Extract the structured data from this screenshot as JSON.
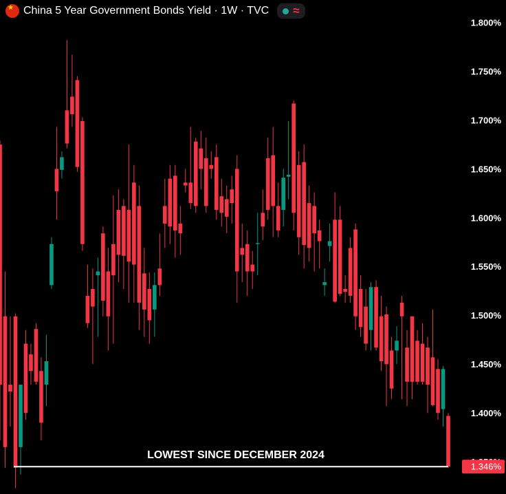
{
  "chart_data": {
    "type": "candlestick",
    "title": "China 5 Year Government Bonds Yield · 1W · TVC",
    "up_color": "#089981",
    "down_color": "#f23645",
    "open": [
      1.676,
      1.5,
      1.43,
      1.5,
      1.366,
      1.472,
      1.461,
      1.487,
      1.444,
      1.43,
      1.532,
      1.651,
      1.65,
      1.711,
      1.725,
      1.742,
      1.7,
      1.521,
      1.528,
      1.542,
      1.585,
      1.546,
      1.574,
      1.609,
      1.613,
      1.609,
      1.637,
      1.613,
      1.544,
      1.528,
      1.507,
      1.549,
      1.613,
      1.641,
      1.644,
      1.595,
      1.637,
      1.637,
      1.679,
      1.672,
      1.662,
      1.655,
      1.663,
      1.623,
      1.62,
      1.63,
      1.651,
      1.57,
      1.574,
      1.553,
      1.574,
      1.606,
      1.662,
      1.665,
      1.613,
      1.609,
      1.643,
      1.718,
      1.655,
      1.658,
      1.616,
      1.613,
      1.588,
      1.532,
      1.572,
      1.599,
      1.599,
      1.528,
      1.57,
      1.589,
      1.528,
      1.51,
      1.486,
      1.53,
      1.5,
      1.502,
      1.465,
      1.465,
      1.514,
      1.468,
      1.5,
      1.475,
      1.472,
      1.468,
      1.458,
      1.446,
      1.405,
      1.398
    ],
    "high": [
      1.68,
      1.546,
      1.5,
      1.503,
      1.43,
      1.486,
      1.472,
      1.493,
      1.458,
      1.481,
      1.581,
      1.694,
      1.669,
      1.783,
      1.768,
      1.746,
      1.704,
      1.553,
      1.549,
      1.56,
      1.592,
      1.57,
      1.624,
      1.63,
      1.62,
      1.676,
      1.655,
      1.634,
      1.57,
      1.545,
      1.545,
      1.585,
      1.641,
      1.655,
      1.655,
      1.613,
      1.651,
      1.694,
      1.683,
      1.69,
      1.683,
      1.669,
      1.676,
      1.641,
      1.634,
      1.644,
      1.665,
      1.595,
      1.588,
      1.567,
      1.606,
      1.63,
      1.683,
      1.694,
      1.637,
      1.651,
      1.7,
      1.721,
      1.669,
      1.676,
      1.634,
      1.627,
      1.599,
      1.549,
      1.595,
      1.627,
      1.613,
      1.542,
      1.581,
      1.595,
      1.542,
      1.528,
      1.535,
      1.537,
      1.521,
      1.51,
      1.479,
      1.49,
      1.521,
      1.486,
      1.5,
      1.486,
      1.493,
      1.479,
      1.507,
      1.456,
      1.449,
      1.401
    ],
    "low": [
      1.373,
      1.345,
      1.387,
      1.324,
      1.338,
      1.394,
      1.43,
      1.43,
      1.373,
      1.408,
      1.528,
      1.599,
      1.641,
      1.672,
      1.694,
      1.648,
      1.567,
      1.488,
      1.451,
      1.479,
      1.5,
      1.465,
      1.472,
      1.535,
      1.528,
      1.514,
      1.514,
      1.486,
      1.479,
      1.472,
      1.479,
      1.521,
      1.57,
      1.574,
      1.56,
      1.563,
      1.627,
      1.61,
      1.606,
      1.63,
      1.606,
      1.641,
      1.599,
      1.592,
      1.585,
      1.595,
      1.514,
      1.535,
      1.521,
      1.528,
      1.542,
      1.578,
      1.599,
      1.581,
      1.581,
      1.592,
      1.62,
      1.588,
      1.563,
      1.549,
      1.556,
      1.546,
      1.549,
      1.521,
      1.556,
      1.514,
      1.521,
      1.514,
      1.514,
      1.486,
      1.479,
      1.465,
      1.465,
      1.465,
      1.444,
      1.408,
      1.415,
      1.451,
      1.415,
      1.408,
      1.415,
      1.43,
      1.43,
      1.401,
      1.408,
      1.394,
      1.387,
      1.345
    ],
    "close": [
      1.43,
      1.366,
      1.423,
      1.345,
      1.43,
      1.401,
      1.444,
      1.433,
      1.391,
      1.454,
      1.574,
      1.628,
      1.663,
      1.677,
      1.707,
      1.653,
      1.574,
      1.493,
      1.51,
      1.546,
      1.516,
      1.5,
      1.542,
      1.563,
      1.562,
      1.556,
      1.553,
      1.514,
      1.507,
      1.496,
      1.532,
      1.532,
      1.595,
      1.592,
      1.588,
      1.585,
      1.634,
      1.616,
      1.613,
      1.651,
      1.613,
      1.651,
      1.609,
      1.606,
      1.602,
      1.616,
      1.546,
      1.563,
      1.546,
      1.546,
      1.575,
      1.592,
      1.609,
      1.613,
      1.588,
      1.642,
      1.645,
      1.606,
      1.581,
      1.573,
      1.57,
      1.585,
      1.577,
      1.535,
      1.577,
      1.515,
      1.523,
      1.525,
      1.521,
      1.5,
      1.489,
      1.472,
      1.53,
      1.468,
      1.454,
      1.451,
      1.426,
      1.475,
      1.5,
      1.433,
      1.433,
      1.433,
      1.433,
      1.43,
      1.409,
      1.401,
      1.446,
      1.346
    ],
    "ylim": [
      1.318,
      1.824
    ],
    "yticks": [
      {
        "value": 1.35,
        "label": "1.350%"
      },
      {
        "value": 1.4,
        "label": "1.400%"
      },
      {
        "value": 1.45,
        "label": "1.450%"
      },
      {
        "value": 1.5,
        "label": "1.500%"
      },
      {
        "value": 1.55,
        "label": "1.550%"
      },
      {
        "value": 1.6,
        "label": "1.600%"
      },
      {
        "value": 1.65,
        "label": "1.650%"
      },
      {
        "value": 1.7,
        "label": "1.700%"
      },
      {
        "value": 1.75,
        "label": "1.750%"
      },
      {
        "value": 1.8,
        "label": "1.800%"
      }
    ],
    "last_price": {
      "value": 1.346,
      "label": "1.346%"
    },
    "annotation": {
      "text": "LOWEST SINCE DECEMBER 2024",
      "value": 1.346,
      "color": "#ffffff"
    }
  }
}
